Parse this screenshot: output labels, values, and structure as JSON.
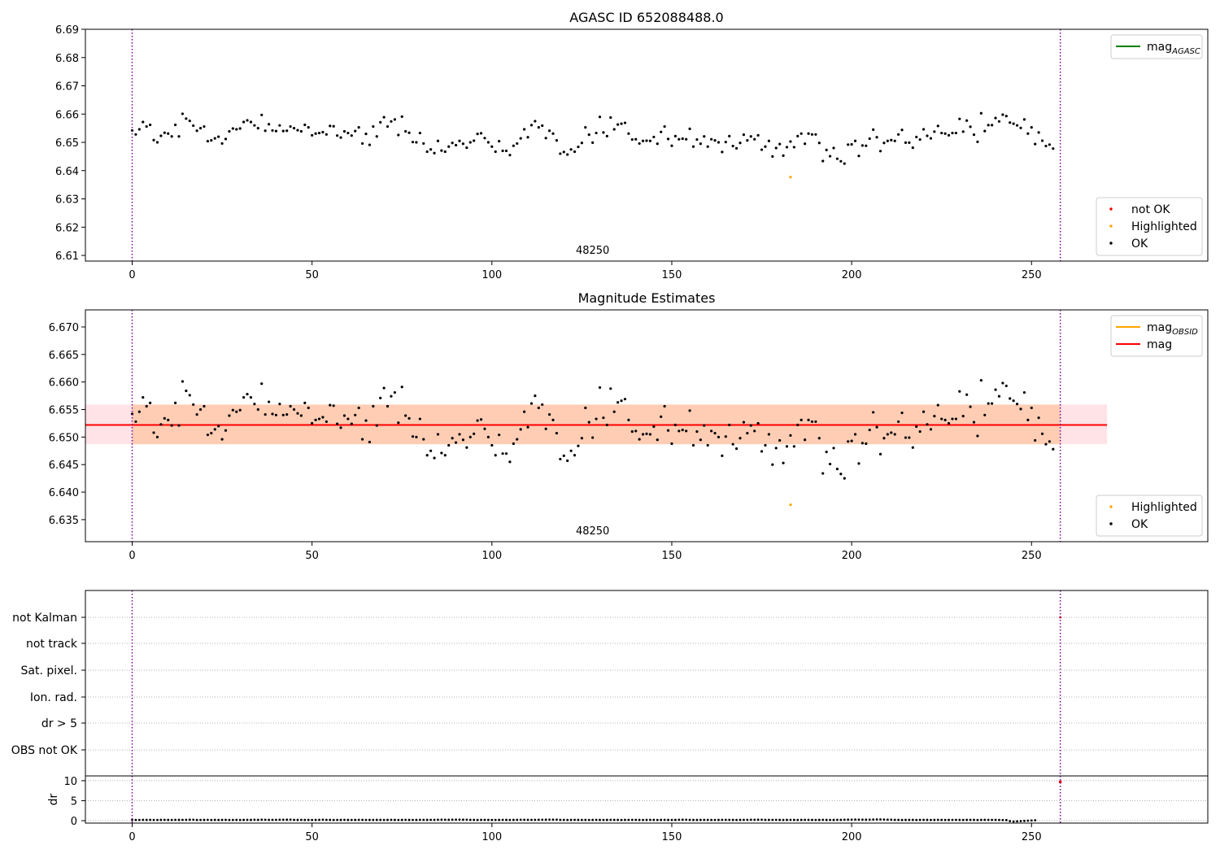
{
  "chart_data": [
    {
      "type": "scatter",
      "title": "AGASC ID 652088488.0",
      "xlabel": "",
      "ylabel": "",
      "xlim": [
        -13,
        299
      ],
      "ylim": [
        6.608,
        6.69
      ],
      "xticks": [
        0,
        50,
        100,
        150,
        200,
        250
      ],
      "yticks": [
        6.61,
        6.62,
        6.63,
        6.64,
        6.65,
        6.66,
        6.67,
        6.68,
        6.69
      ],
      "obsid_label": "48250",
      "obsid_label_x": 128,
      "vlines": [
        0,
        258
      ],
      "grid": false,
      "legend_top": {
        "position": "upper right",
        "entries": [
          {
            "label": "mag",
            "sub": "AGASC",
            "color": "#008000"
          }
        ]
      },
      "legend_bottom": {
        "position": "lower right",
        "entries": [
          {
            "label": "not OK",
            "color": "#ff0000"
          },
          {
            "label": "Highlighted",
            "color": "#ffa500"
          },
          {
            "label": "OK",
            "color": "#000000"
          }
        ]
      },
      "series": [
        {
          "name": "OK",
          "color": "#000000",
          "x_start": 0,
          "x_step": 1,
          "values": [
            6.6542,
            6.6528,
            6.6546,
            6.6572,
            6.6556,
            6.6562,
            6.6508,
            6.65,
            6.6523,
            6.6534,
            6.6531,
            6.6521,
            6.6562,
            6.6521,
            6.6601,
            6.6584,
            6.6576,
            6.6559,
            6.6541,
            6.655,
            6.6556,
            6.6504,
            6.6507,
            6.6514,
            6.652,
            6.6496,
            6.6512,
            6.6539,
            6.6549,
            6.6546,
            6.6549,
            6.6572,
            6.6578,
            6.6572,
            6.656,
            6.655,
            6.6597,
            6.6541,
            6.6564,
            6.6542,
            6.654,
            6.656,
            6.654,
            6.6541,
            6.6556,
            6.655,
            6.6543,
            6.6539,
            6.6562,
            6.6553,
            6.6525,
            6.6531,
            6.6533,
            6.6536,
            6.6528,
            6.6558,
            6.6557,
            6.6524,
            6.6517,
            6.6539,
            6.6533,
            6.6524,
            6.654,
            6.6553,
            6.6496,
            6.653,
            6.6491,
            6.6556,
            6.6521,
            6.6571,
            6.6589,
            6.6556,
            6.6574,
            6.6581,
            6.6526,
            6.6591,
            6.6539,
            6.6534,
            6.6501,
            6.65,
            6.6533,
            6.6496,
            6.6467,
            6.6475,
            6.6462,
            6.6505,
            6.6471,
            6.6467,
            6.6485,
            6.6498,
            6.649,
            6.6505,
            6.6495,
            6.6481,
            6.65,
            6.6506,
            6.653,
            6.6532,
            6.6515,
            6.65,
            6.6485,
            6.6467,
            6.6504,
            6.647,
            6.647,
            6.6455,
            6.6488,
            6.6496,
            6.6514,
            6.6546,
            6.6518,
            6.6561,
            6.6575,
            6.6553,
            6.6559,
            6.6515,
            6.6541,
            6.6531,
            6.6507,
            6.646,
            6.6466,
            6.6457,
            6.6475,
            6.6467,
            6.6484,
            6.6498,
            6.6553,
            6.6527,
            6.6499,
            6.6533,
            6.659,
            6.6535,
            6.6522,
            6.6588,
            6.6546,
            6.6563,
            6.6566,
            6.6569,
            6.6531,
            6.651,
            6.6511,
            6.6496,
            6.6505,
            6.6506,
            6.6505,
            6.6519,
            6.6495,
            6.6537,
            6.6556,
            6.6512,
            6.6488,
            6.6522,
            6.6511,
            6.6513,
            6.6511,
            6.6548,
            6.6485,
            6.651,
            6.6495,
            6.6521,
            6.6485,
            6.6511,
            6.6507,
            6.65,
            6.6466,
            6.6501,
            6.6522,
            6.6487,
            6.6479,
            6.6498,
            6.6527,
            6.6507,
            6.6521,
            6.6511,
            6.6525,
            6.6474,
            6.6485,
            6.6505,
            6.645,
            6.648,
            6.6494,
            6.6453,
            6.6483,
            6.6503,
            6.6483,
            6.6522,
            6.6531,
            6.6495,
            6.6531,
            6.6528,
            6.6528,
            6.6498,
            6.6434,
            6.6473,
            6.6451,
            6.648,
            6.6442,
            6.6433,
            6.6425,
            6.6492,
            6.6493,
            6.6505,
            6.6452,
            6.6489,
            6.6488,
            6.6513,
            6.6545,
            6.6518,
            6.6469,
            6.6498,
            6.6505,
            6.6508,
            6.6505,
            6.6528,
            6.6544,
            6.6499,
            6.6499,
            6.6481,
            6.6519,
            6.651,
            6.6546,
            6.6523,
            6.6514,
            6.6538,
            6.6558,
            6.6533,
            6.6531,
            6.6525,
            6.6533,
            6.6533,
            6.6583,
            6.6538,
            6.6577,
            6.6555,
            6.6527,
            6.6502,
            6.6603,
            6.654,
            6.6561,
            6.6561,
            6.6586,
            6.6574,
            6.6598,
            6.6593,
            6.657,
            6.6566,
            6.656,
            6.6551,
            6.6581,
            6.6531,
            6.6553,
            6.6494,
            6.6535,
            6.6506,
            6.6487,
            6.6492,
            6.6478
          ]
        },
        {
          "name": "Highlighted",
          "color": "#ffa500",
          "points": [
            {
              "x": 183,
              "y": 6.6377
            }
          ]
        }
      ]
    },
    {
      "type": "scatter",
      "title": "Magnitude Estimates",
      "xlabel": "",
      "ylabel": "",
      "xlim": [
        -13,
        299
      ],
      "ylim": [
        6.631,
        6.6731
      ],
      "xticks": [
        0,
        50,
        100,
        150,
        200,
        250
      ],
      "yticks": [
        6.635,
        6.64,
        6.645,
        6.65,
        6.655,
        6.66,
        6.665,
        6.67
      ],
      "obsid_label": "48250",
      "obsid_label_x": 128,
      "vlines": [
        0,
        258
      ],
      "grid": false,
      "bands": [
        {
          "x": [
            -13,
            271
          ],
          "y": [
            6.6487,
            6.6559
          ],
          "color": "#ff9aa8",
          "opacity": 0.28
        },
        {
          "x": [
            0,
            258
          ],
          "y": [
            6.6487,
            6.6559
          ],
          "color": "#ffa046",
          "opacity": 0.32
        }
      ],
      "lines": [
        {
          "name": "mag_OBSID",
          "color": "#ffa500",
          "y": 6.6522,
          "x": [
            0,
            258
          ]
        },
        {
          "name": "mag",
          "color": "#ff0000",
          "y": 6.6522,
          "x": [
            -13,
            271
          ]
        }
      ],
      "legend_top": {
        "position": "upper right",
        "entries": [
          {
            "label": "mag",
            "sub": "OBSID",
            "color": "#ffa500"
          },
          {
            "label": "mag",
            "sub": "",
            "color": "#ff0000"
          }
        ]
      },
      "legend_bottom": {
        "position": "lower right",
        "entries": [
          {
            "label": "Highlighted",
            "color": "#ffa500"
          },
          {
            "label": "OK",
            "color": "#000000"
          }
        ]
      },
      "series": [
        {
          "name": "OK",
          "color": "#000000",
          "same_as_panel": 0
        },
        {
          "name": "Highlighted",
          "color": "#ffa500",
          "points": [
            {
              "x": 183,
              "y": 6.6377
            }
          ]
        }
      ]
    },
    {
      "type": "scatter",
      "title": "",
      "xlim": [
        -13,
        299
      ],
      "xticks": [
        0,
        50,
        100,
        150,
        200,
        250
      ],
      "vlines": [
        0,
        258
      ],
      "flag_rows": [
        "not Kalman",
        "not track",
        "Sat. pixel.",
        "Ion. rad.",
        "dr > 5",
        "OBS not OK"
      ],
      "flag_points": [
        {
          "row": "not Kalman",
          "x": 258,
          "color": "#ff0000"
        }
      ],
      "dr": {
        "ylabel": "dr",
        "ylim": [
          -0.6,
          11.2
        ],
        "yticks": [
          0,
          5,
          10
        ],
        "x_start": 0,
        "x_step": 1,
        "values": [
          0.2,
          0.18,
          0.19,
          0.21,
          0.2,
          0.22,
          0.19,
          0.18,
          0.2,
          0.21,
          0.2,
          0.19,
          0.22,
          0.2,
          0.21,
          0.22,
          0.25,
          0.24,
          0.19,
          0.18,
          0.2,
          0.21,
          0.19,
          0.2,
          0.18,
          0.2,
          0.22,
          0.19,
          0.18,
          0.2,
          0.19,
          0.2,
          0.21,
          0.2,
          0.23,
          0.22,
          0.25,
          0.24,
          0.2,
          0.21,
          0.22,
          0.24,
          0.23,
          0.25,
          0.26,
          0.22,
          0.2,
          0.21,
          0.19,
          0.2,
          0.18,
          0.2,
          0.22,
          0.24,
          0.21,
          0.2,
          0.19,
          0.18,
          0.2,
          0.21,
          0.2,
          0.19,
          0.2,
          0.22,
          0.21,
          0.19,
          0.2,
          0.18,
          0.2,
          0.2,
          0.19,
          0.2,
          0.21,
          0.2,
          0.19,
          0.2,
          0.21,
          0.2,
          0.19,
          0.2,
          0.21,
          0.22,
          0.2,
          0.21,
          0.22,
          0.24,
          0.25,
          0.24,
          0.23,
          0.25,
          0.26,
          0.27,
          0.25,
          0.24,
          0.22,
          0.2,
          0.19,
          0.2,
          0.21,
          0.2,
          0.19,
          0.18,
          0.2,
          0.21,
          0.2,
          0.19,
          0.2,
          0.22,
          0.24,
          0.23,
          0.22,
          0.21,
          0.22,
          0.24,
          0.23,
          0.25,
          0.26,
          0.27,
          0.26,
          0.22,
          0.2,
          0.19,
          0.2,
          0.21,
          0.2,
          0.19,
          0.2,
          0.18,
          0.2,
          0.21,
          0.2,
          0.19,
          0.2,
          0.21,
          0.22,
          0.2,
          0.19,
          0.2,
          0.21,
          0.22,
          0.21,
          0.2,
          0.19,
          0.2,
          0.21,
          0.2,
          0.19,
          0.2,
          0.21,
          0.2,
          0.19,
          0.2,
          0.23,
          0.25,
          0.24,
          0.22,
          0.2,
          0.19,
          0.2,
          0.21,
          0.2,
          0.19,
          0.18,
          0.2,
          0.21,
          0.22,
          0.21,
          0.2,
          0.19,
          0.2,
          0.21,
          0.22,
          0.24,
          0.23,
          0.25,
          0.24,
          0.22,
          0.2,
          0.21,
          0.22,
          0.2,
          0.19,
          0.2,
          0.21,
          0.2,
          0.19,
          0.2,
          0.22,
          0.21,
          0.2,
          0.19,
          0.2,
          0.21,
          0.2,
          0.19,
          0.2,
          0.21,
          0.22,
          0.24,
          0.26,
          0.27,
          0.28,
          0.27,
          0.26,
          0.25,
          0.27,
          0.28,
          0.3,
          0.32,
          0.29,
          0.27,
          0.25,
          0.22,
          0.2,
          0.19,
          0.2,
          0.21,
          0.2,
          0.19,
          0.2,
          0.22,
          0.2,
          0.19,
          0.2,
          0.21,
          0.2,
          0.19,
          0.2,
          0.21,
          0.22,
          0.2,
          0.19,
          0.2,
          0.21,
          0.2,
          0.19,
          0.2,
          0.21,
          0.22,
          0.21,
          0.2,
          0.18,
          0.17,
          0.15,
          -0.1,
          -0.2,
          -0.15,
          -0.1,
          -0.05,
          0.0,
          0.05,
          0.1
        ],
        "outlier": {
          "x": 258,
          "y": 9.7,
          "color": "#ff0000"
        }
      }
    }
  ]
}
